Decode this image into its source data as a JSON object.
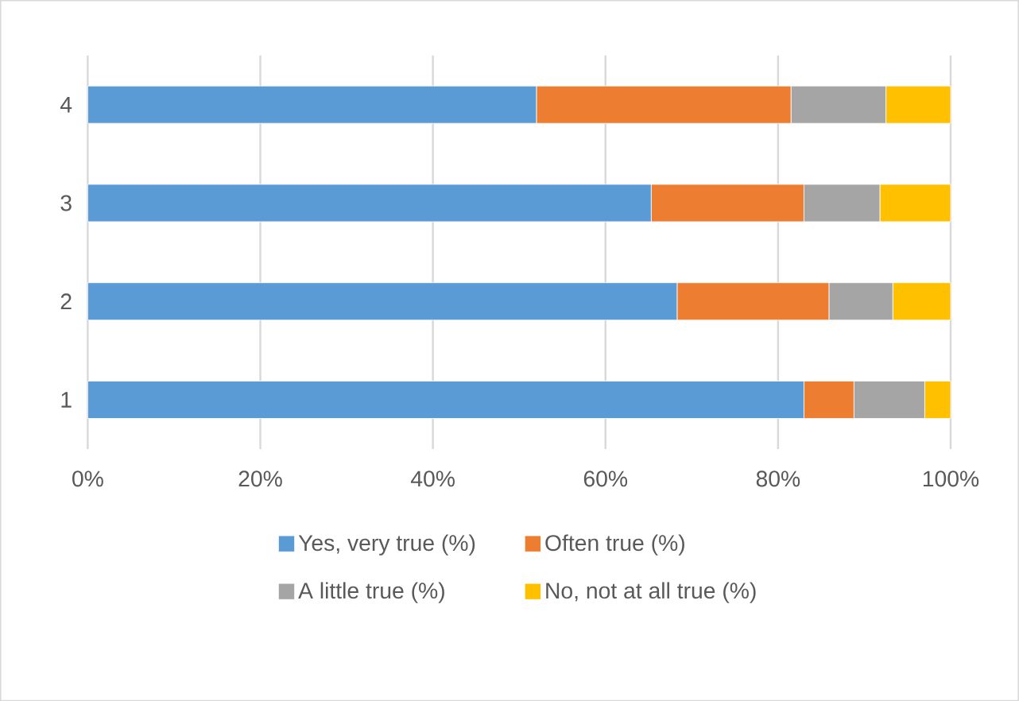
{
  "chart_data": {
    "type": "bar",
    "orientation": "horizontal",
    "stacked": true,
    "categories": [
      "4",
      "3",
      "2",
      "1"
    ],
    "series": [
      {
        "name": "Yes, very true (%)",
        "color": "#5b9bd5",
        "values": [
          52.0,
          65.3,
          68.3,
          83.0
        ]
      },
      {
        "name": "Often true (%)",
        "color": "#ed7d31",
        "values": [
          29.5,
          17.7,
          17.6,
          5.8
        ]
      },
      {
        "name": "A little true (%)",
        "color": "#a5a5a5",
        "values": [
          11.0,
          8.8,
          7.4,
          8.2
        ]
      },
      {
        "name": "No, not at all true (%)",
        "color": "#ffc000",
        "values": [
          7.5,
          8.2,
          6.7,
          3.0
        ]
      }
    ],
    "xlim": [
      0,
      100
    ],
    "xticks": [
      {
        "value": 0,
        "label": "0%"
      },
      {
        "value": 20,
        "label": "20%"
      },
      {
        "value": 40,
        "label": "40%"
      },
      {
        "value": 60,
        "label": "60%"
      },
      {
        "value": 80,
        "label": "80%"
      },
      {
        "value": 100,
        "label": "100%"
      }
    ],
    "grid": "x",
    "legend": "bottom"
  }
}
